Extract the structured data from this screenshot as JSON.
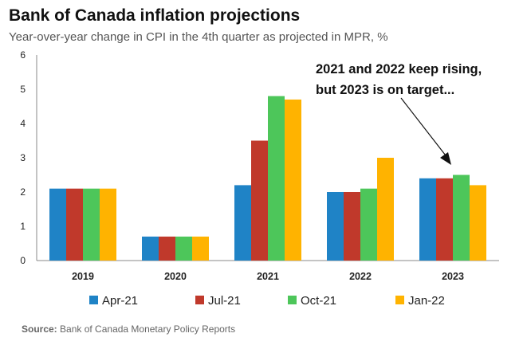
{
  "chart_data": {
    "type": "bar",
    "title": "Bank of Canada  inflation projections",
    "subtitle": "Year-over-year  change in CPI in the 4th quarter as projected in MPR, %",
    "categories": [
      "2019",
      "2020",
      "2021",
      "2022",
      "2023"
    ],
    "series": [
      {
        "name": "Apr-21",
        "color": "#1f83c6",
        "values": [
          2.1,
          0.7,
          2.2,
          2.0,
          2.4
        ]
      },
      {
        "name": "Jul-21",
        "color": "#c0392b",
        "values": [
          2.1,
          0.7,
          3.5,
          2.0,
          2.4
        ]
      },
      {
        "name": "Oct-21",
        "color": "#4dc65a",
        "values": [
          2.1,
          0.7,
          4.8,
          2.1,
          2.5
        ]
      },
      {
        "name": "Jan-22",
        "color": "#ffb300",
        "values": [
          2.1,
          0.7,
          4.7,
          3.0,
          2.2
        ]
      }
    ],
    "ylim": [
      0,
      6
    ],
    "yticks": [
      "0",
      "1",
      "2",
      "3",
      "4",
      "5",
      "6"
    ],
    "grid": false,
    "legend": "bottom",
    "annotation": "2021 and 2022 keep rising,\nbut 2023 is on target...",
    "source_label": "Source:",
    "source_text": " Bank of Canada Monetary Policy Reports"
  }
}
